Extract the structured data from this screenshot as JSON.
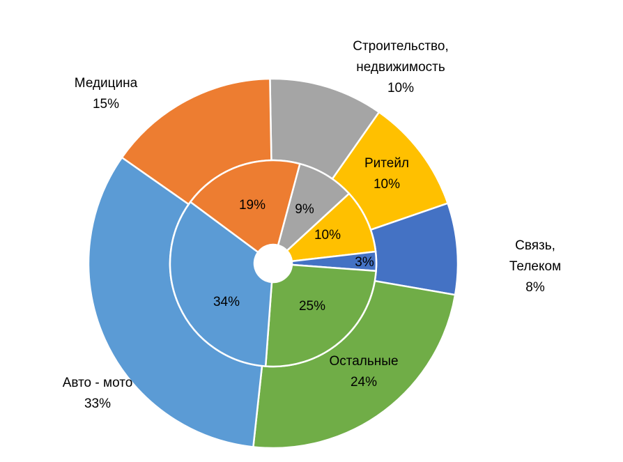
{
  "chart_data": {
    "type": "doughnut",
    "categories": [
      "Строительство,\nнедвижимость",
      "Ритейл",
      "Связь, Телеком",
      "Остальные",
      "Авто - мото",
      "Медицина"
    ],
    "colors": [
      "#a5a5a5",
      "#ffc000",
      "#4472c4",
      "#70ad47",
      "#5b9bd5",
      "#ed7d31"
    ],
    "series": [
      {
        "values": [
          10,
          10,
          8,
          24,
          33,
          15
        ],
        "value_labels": [
          "10%",
          "10%",
          "8%",
          "24%",
          "33%",
          "15%"
        ]
      },
      {
        "values": [
          9,
          10,
          3,
          25,
          34,
          19
        ],
        "value_labels": [
          "9%",
          "10%",
          "3%",
          "25%",
          "34%",
          "19%"
        ]
      }
    ]
  }
}
